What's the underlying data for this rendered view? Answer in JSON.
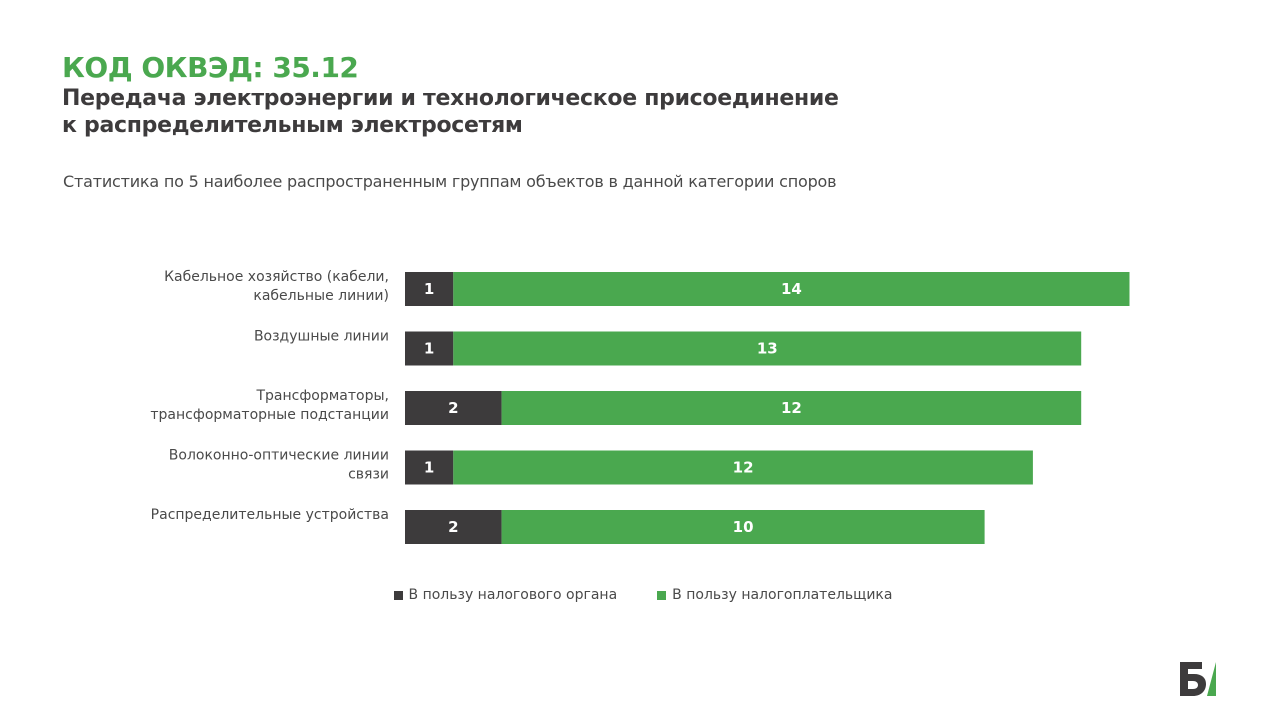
{
  "header": {
    "title": "КОД ОКВЭД: 35.12",
    "subtitle_line1": "Передача электроэнергии и технологическое присоединение",
    "subtitle_line2": "к распределительным электросетям",
    "description": "Статистика по 5 наиболее распространенным группам объектов в данной категории споров"
  },
  "colors": {
    "accent": "#4aa84f",
    "dark": "#3d3b3c",
    "title_green": "#4aa84f"
  },
  "chart_data": {
    "type": "bar",
    "orientation": "horizontal",
    "stacked": true,
    "categories": [
      [
        "Кабельное хозяйство (кабели,",
        "кабельные линии)"
      ],
      [
        "Воздушные линии"
      ],
      [
        "Трансформаторы,",
        "трансформаторные подстанции"
      ],
      [
        "Волоконно-оптические линии",
        "связи"
      ],
      [
        "Распределительные устройства"
      ]
    ],
    "series": [
      {
        "name": "В пользу налогового органа",
        "color": "#3d3b3c",
        "values": [
          1,
          1,
          2,
          1,
          2
        ]
      },
      {
        "name": "В пользу налогоплательщика",
        "color": "#4aa84f",
        "values": [
          14,
          13,
          12,
          12,
          10
        ]
      }
    ],
    "data_labels": true,
    "legend_position": "bottom",
    "grid": false
  },
  "logo": {
    "name": "brand-logo"
  }
}
